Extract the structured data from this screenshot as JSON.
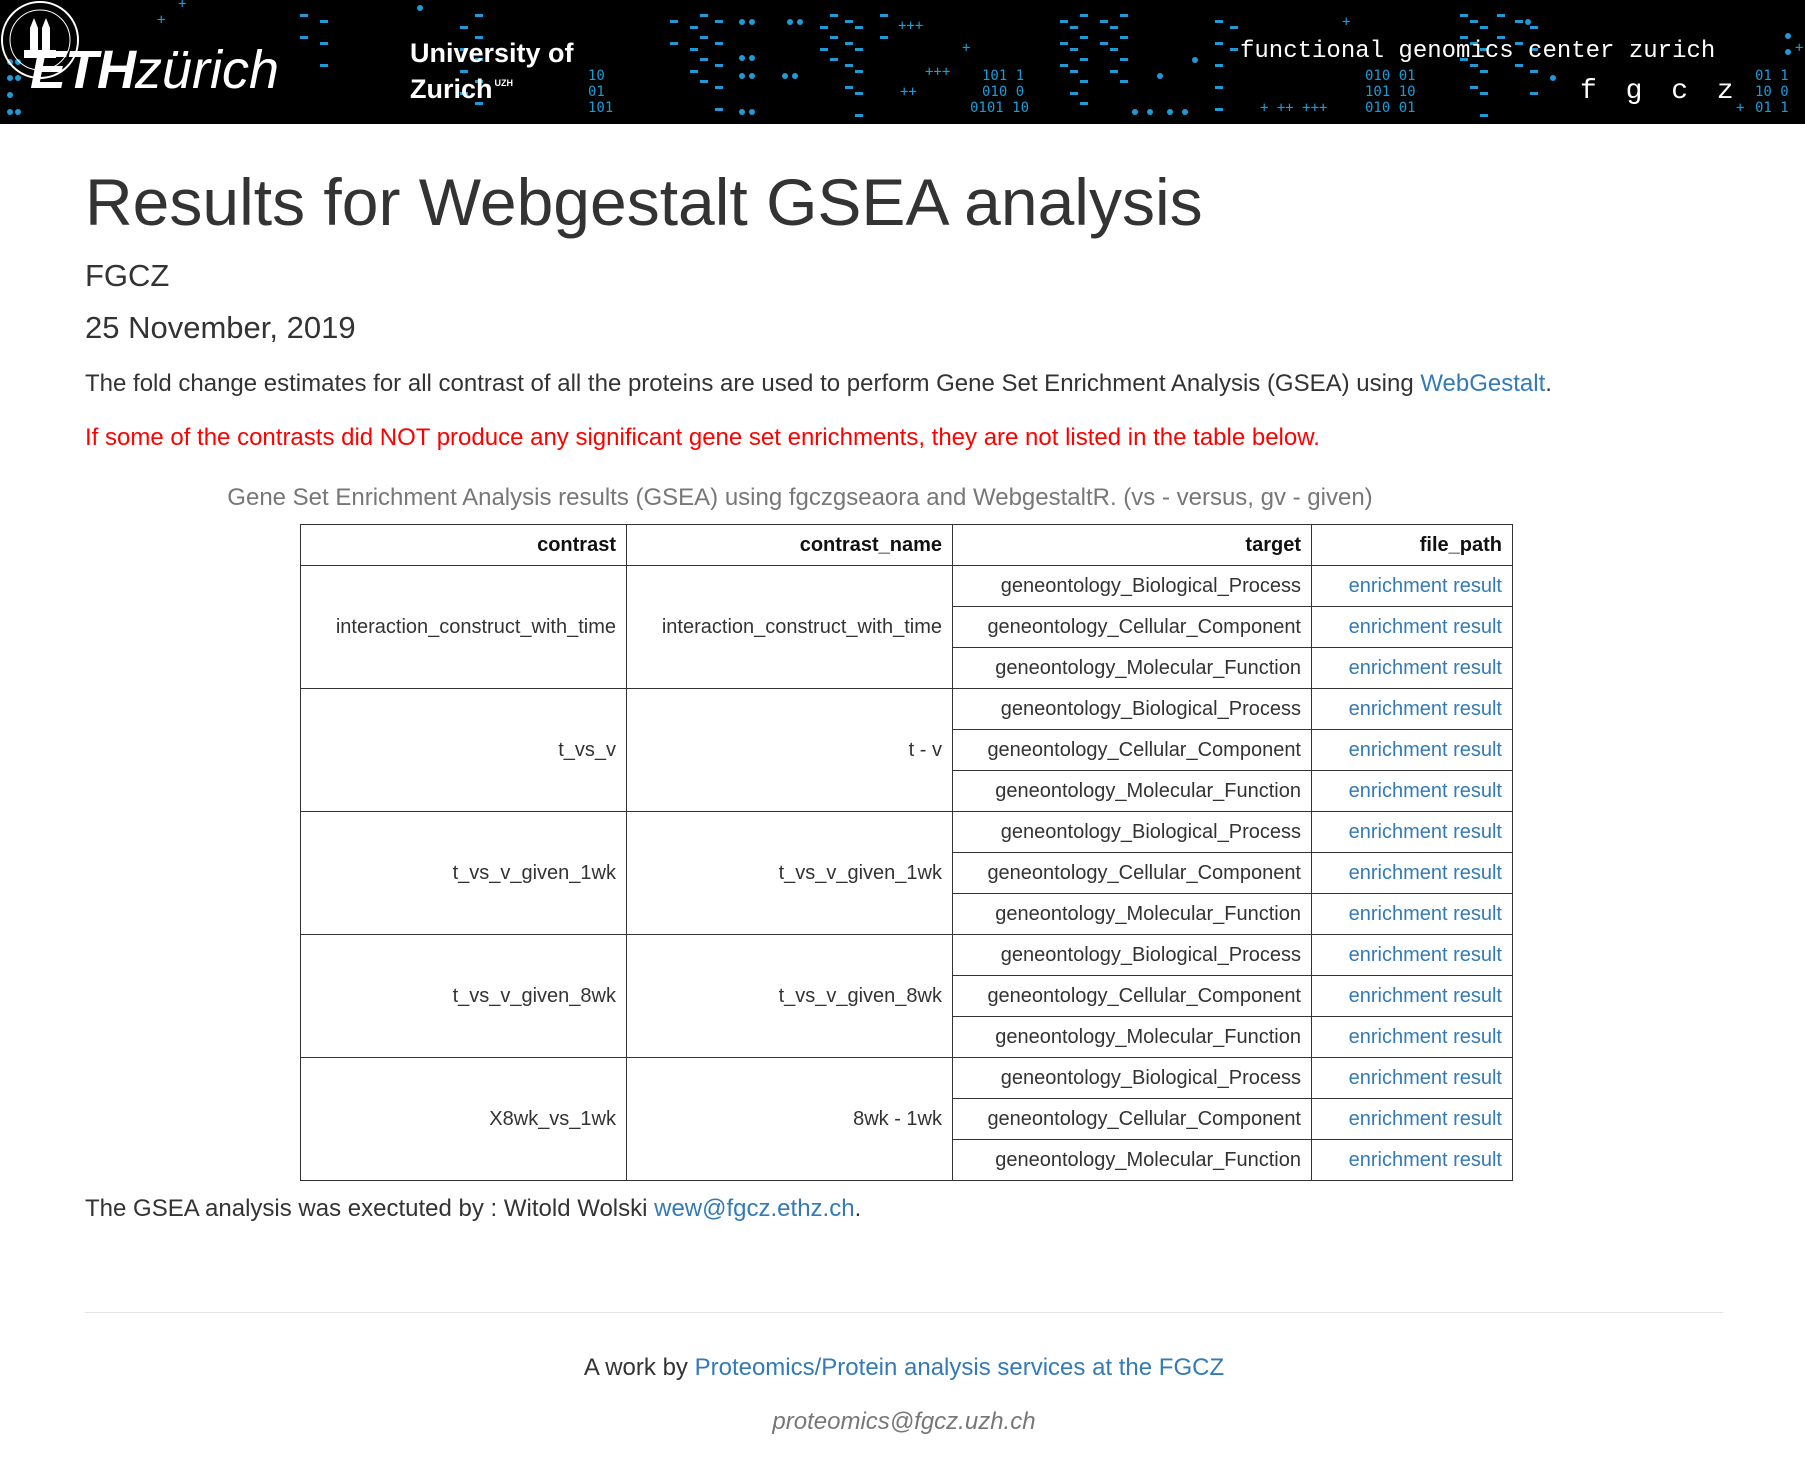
{
  "banner": {
    "eth_bold": "ETH",
    "eth_light": "zürich",
    "uzh_line1": "University of",
    "uzh_line2": "Zurich",
    "uzh_sup": "UZH",
    "fgcz_title": "functional genomics center zurich",
    "fgcz_short": "f g c z"
  },
  "header": {
    "title": "Results for Webgestalt GSEA analysis",
    "author": "FGCZ",
    "date": "25 November, 2019"
  },
  "intro": {
    "text": "The fold change estimates for all contrast of all the proteins are used to perform Gene Set Enrichment Analysis (GSEA) using ",
    "link_label": "WebGestalt",
    "after": "."
  },
  "warning": "If some of the contrasts did NOT produce any significant gene set enrichments, they are not listed in the table below.",
  "table": {
    "caption": "Gene Set Enrichment Analysis results (GSEA) using fgczgseaora and WebgestaltR. (vs - versus, gv - given)",
    "headers": [
      "contrast",
      "contrast_name",
      "target",
      "file_path"
    ],
    "groups": [
      {
        "contrast": "interaction_construct_with_time",
        "contrast_name": "interaction_construct_with_time",
        "rows": [
          {
            "target": "geneontology_Biological_Process",
            "file_path": "enrichment result"
          },
          {
            "target": "geneontology_Cellular_Component",
            "file_path": "enrichment result"
          },
          {
            "target": "geneontology_Molecular_Function",
            "file_path": "enrichment result"
          }
        ]
      },
      {
        "contrast": "t_vs_v",
        "contrast_name": "t - v",
        "rows": [
          {
            "target": "geneontology_Biological_Process",
            "file_path": "enrichment result"
          },
          {
            "target": "geneontology_Cellular_Component",
            "file_path": "enrichment result"
          },
          {
            "target": "geneontology_Molecular_Function",
            "file_path": "enrichment result"
          }
        ]
      },
      {
        "contrast": "t_vs_v_given_1wk",
        "contrast_name": "t_vs_v_given_1wk",
        "rows": [
          {
            "target": "geneontology_Biological_Process",
            "file_path": "enrichment result"
          },
          {
            "target": "geneontology_Cellular_Component",
            "file_path": "enrichment result"
          },
          {
            "target": "geneontology_Molecular_Function",
            "file_path": "enrichment result"
          }
        ]
      },
      {
        "contrast": "t_vs_v_given_8wk",
        "contrast_name": "t_vs_v_given_8wk",
        "rows": [
          {
            "target": "geneontology_Biological_Process",
            "file_path": "enrichment result"
          },
          {
            "target": "geneontology_Cellular_Component",
            "file_path": "enrichment result"
          },
          {
            "target": "geneontology_Molecular_Function",
            "file_path": "enrichment result"
          }
        ]
      },
      {
        "contrast": "X8wk_vs_1wk",
        "contrast_name": "8wk - 1wk",
        "rows": [
          {
            "target": "geneontology_Biological_Process",
            "file_path": "enrichment result"
          },
          {
            "target": "geneontology_Cellular_Component",
            "file_path": "enrichment result"
          },
          {
            "target": "geneontology_Molecular_Function",
            "file_path": "enrichment result"
          }
        ]
      }
    ]
  },
  "executed_by": {
    "text": "The GSEA analysis was exectuted by : Witold Wolski ",
    "email": "wew@fgcz.ethz.ch",
    "after": "."
  },
  "footer": {
    "text": "A work by ",
    "link_label": "Proteomics/Protein analysis services at the FGCZ",
    "email": "proteomics@fgcz.uzh.ch"
  },
  "colors": {
    "link": "#337ab7",
    "warning": "#ff0000",
    "banner_bg": "#000000",
    "banner_accent": "#1e9bd7"
  }
}
